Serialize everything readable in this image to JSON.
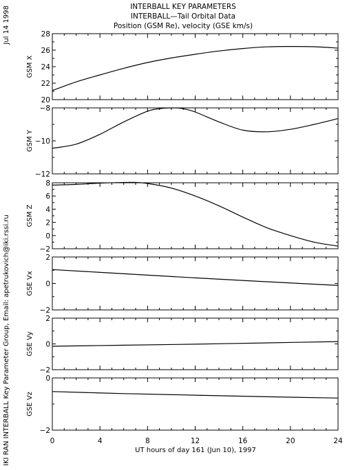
{
  "header": {
    "title_lines": [
      "INTERBALL KEY PARAMETERS",
      "INTERBALL—Tail Orbital Data",
      "Position (GSM Re), velocity (GSE km/s)"
    ],
    "date": "Jul 14 1998",
    "credit": "IKI RAN INTERBALL Key Parameter Group, Email: apetrukovich@iki.rssi.ru"
  },
  "chart_data": [
    {
      "type": "line",
      "ylabel": "GSM X",
      "ylim": [
        20,
        28
      ],
      "yticks": [
        20,
        22,
        24,
        26,
        28
      ],
      "xlim": [
        0,
        24
      ],
      "series": [
        {
          "x": [
            0,
            2,
            4,
            6,
            8,
            10,
            12,
            14,
            16,
            18,
            20,
            22,
            24
          ],
          "y": [
            21.1,
            22.15,
            23.0,
            23.8,
            24.5,
            25.05,
            25.5,
            25.9,
            26.2,
            26.4,
            26.45,
            26.42,
            26.25
          ]
        }
      ]
    },
    {
      "type": "line",
      "ylabel": "GSM Y",
      "ylim": [
        -12,
        -8
      ],
      "yticks": [
        -12,
        -10,
        -8
      ],
      "yticklabels": [
        "−12",
        "−10",
        "−8"
      ],
      "xlim": [
        0,
        24
      ],
      "series": [
        {
          "x": [
            0,
            2,
            4,
            6,
            8,
            9,
            10,
            11,
            12,
            14,
            16,
            18,
            20,
            22,
            24
          ],
          "y": [
            -10.45,
            -10.2,
            -9.6,
            -8.85,
            -8.2,
            -8.05,
            -8.0,
            -8.05,
            -8.25,
            -8.85,
            -9.35,
            -9.45,
            -9.3,
            -9.0,
            -8.65
          ]
        }
      ]
    },
    {
      "type": "line",
      "ylabel": "GSM Z",
      "ylim": [
        -2,
        8
      ],
      "yticks": [
        -2,
        0,
        2,
        4,
        6,
        8
      ],
      "yticklabels": [
        "−2",
        "0",
        "2",
        "4",
        "6",
        "8"
      ],
      "xlim": [
        0,
        24
      ],
      "series": [
        {
          "x": [
            0,
            2,
            4,
            6,
            7,
            8,
            10,
            12,
            14,
            16,
            18,
            20,
            22,
            24
          ],
          "y": [
            7.65,
            7.75,
            7.95,
            8.05,
            8.05,
            7.9,
            7.2,
            6.0,
            4.5,
            2.8,
            1.2,
            0.0,
            -1.0,
            -1.6
          ]
        }
      ]
    },
    {
      "type": "line",
      "ylabel": "GSE Vx",
      "ylim": [
        -2,
        2
      ],
      "yticks": [
        -2,
        0,
        2
      ],
      "yticklabels": [
        "−2",
        "0",
        "2"
      ],
      "xlim": [
        0,
        24
      ],
      "series": [
        {
          "x": [
            0,
            6,
            12,
            18,
            24
          ],
          "y": [
            1.05,
            0.73,
            0.42,
            0.13,
            -0.15
          ]
        }
      ]
    },
    {
      "type": "line",
      "ylabel": "GSE Vy",
      "ylim": [
        -2,
        2
      ],
      "yticks": [
        -2,
        0,
        2
      ],
      "yticklabels": [
        "−2",
        "0",
        "2"
      ],
      "xlim": [
        0,
        24
      ],
      "series": [
        {
          "x": [
            0,
            6,
            12,
            18,
            24
          ],
          "y": [
            -0.18,
            -0.1,
            -0.02,
            0.08,
            0.18
          ]
        }
      ]
    },
    {
      "type": "line",
      "ylabel": "GSE Vz",
      "ylim": [
        -2,
        0
      ],
      "yticks": [
        -2,
        0
      ],
      "yticklabels": [
        "−2",
        "0"
      ],
      "xlim": [
        0,
        24
      ],
      "series": [
        {
          "x": [
            0,
            6,
            12,
            18,
            24
          ],
          "y": [
            -0.52,
            -0.6,
            -0.66,
            -0.72,
            -0.77
          ]
        }
      ]
    }
  ],
  "xaxis": {
    "xlabel": "UT hours of day 161 (Jun 10), 1997",
    "xlim": [
      0,
      24
    ],
    "ticks": [
      0,
      4,
      8,
      12,
      16,
      20,
      24
    ]
  }
}
